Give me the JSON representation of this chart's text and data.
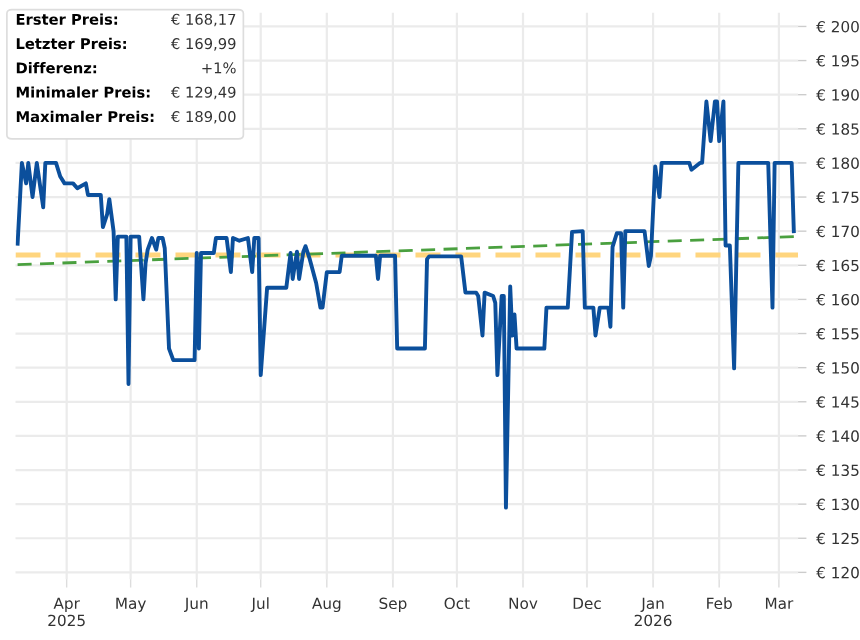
{
  "chart_data": {
    "type": "line",
    "annotations": [
      "Erster Preis:\t€ 168,17",
      "Letzter Preis:\t€ 169,99",
      "Differenz:\t+1%",
      "Minimaler Preis:\t€ 129,49",
      "Maximaler Preis:\t€ 189,00"
    ],
    "series": [
      {
        "color": "#0b4f9c",
        "x": [
          "2025-03-09",
          "2025-03-11",
          "2025-03-13",
          "2025-03-14",
          "2025-03-16",
          "2025-03-18",
          "2025-03-21",
          "2025-03-22",
          "2025-03-27",
          "2025-03-29",
          "2025-03-31",
          "2025-04-04",
          "2025-04-06",
          "2025-04-10",
          "2025-04-11",
          "2025-04-17",
          "2025-04-18",
          "2025-04-20",
          "2025-04-21",
          "2025-04-23",
          "2025-04-24",
          "2025-04-25",
          "2025-04-29",
          "2025-04-30",
          "2025-05-01",
          "2025-05-05",
          "2025-05-07",
          "2025-05-08",
          "2025-05-09",
          "2025-05-11",
          "2025-05-13",
          "2025-05-14",
          "2025-05-16",
          "2025-05-17",
          "2025-05-19",
          "2025-05-21",
          "2025-05-31",
          "2025-06-01",
          "2025-06-02",
          "2025-06-03",
          "2025-06-09",
          "2025-06-10",
          "2025-06-15",
          "2025-06-17",
          "2025-06-18",
          "2025-06-21",
          "2025-06-25",
          "2025-06-27",
          "2025-06-28",
          "2025-06-30",
          "2025-07-01",
          "2025-07-04",
          "2025-07-13",
          "2025-07-15",
          "2025-07-16",
          "2025-07-18",
          "2025-07-19",
          "2025-07-21",
          "2025-07-22",
          "2025-07-24",
          "2025-07-27",
          "2025-07-29",
          "2025-07-30",
          "2025-08-01",
          "2025-08-07",
          "2025-08-08",
          "2025-08-24",
          "2025-08-25",
          "2025-08-26",
          "2025-09-02",
          "2025-09-03",
          "2025-09-16",
          "2025-09-17",
          "2025-09-18",
          "2025-10-03",
          "2025-10-05",
          "2025-10-10",
          "2025-10-11",
          "2025-10-13",
          "2025-10-14",
          "2025-10-18",
          "2025-10-19",
          "2025-10-20",
          "2025-10-22",
          "2025-10-23",
          "2025-10-24",
          "2025-10-26",
          "2025-10-27",
          "2025-10-28",
          "2025-10-29",
          "2025-11-11",
          "2025-11-12",
          "2025-11-22",
          "2025-11-24",
          "2025-11-29",
          "2025-11-30",
          "2025-12-04",
          "2025-12-05",
          "2025-12-07",
          "2025-12-11",
          "2025-12-12",
          "2025-12-13",
          "2025-12-15",
          "2025-12-17",
          "2025-12-18",
          "2025-12-19",
          "2025-12-28",
          "2025-12-30",
          "2025-12-31",
          "2026-01-02",
          "2026-01-04",
          "2026-01-05",
          "2026-01-18",
          "2026-01-19",
          "2026-01-23",
          "2026-01-24",
          "2026-01-26",
          "2026-01-28",
          "2026-01-30",
          "2026-01-31",
          "2026-02-01",
          "2026-02-03",
          "2026-02-04",
          "2026-02-06",
          "2026-02-08",
          "2026-02-10",
          "2026-02-24",
          "2026-02-26",
          "2026-02-27",
          "2026-03-07",
          "2026-03-08"
        ],
        "values": [
          168.17,
          180,
          177,
          180,
          175,
          180,
          173.5,
          180,
          180,
          178,
          177,
          177,
          176.3,
          177,
          175.3,
          175.3,
          170.6,
          172.5,
          174.7,
          170,
          160,
          169.2,
          169.2,
          147.6,
          169.2,
          169.2,
          160,
          165.3,
          167.3,
          169,
          167.3,
          169,
          169,
          167.5,
          152.8,
          151.1,
          151.1,
          166.8,
          152.8,
          166.8,
          166.8,
          169,
          169,
          164,
          169,
          168.6,
          169,
          164,
          169,
          169,
          148.9,
          161.7,
          161.7,
          166.8,
          163,
          167,
          163,
          167,
          167.8,
          165.9,
          162.4,
          158.8,
          158.8,
          164,
          164,
          166.4,
          166.4,
          163,
          166.4,
          166.4,
          152.8,
          152.8,
          165.9,
          166.3,
          166.3,
          161,
          161,
          160.5,
          154.7,
          161,
          160.5,
          159.5,
          148.9,
          160.5,
          160.5,
          129.49,
          161.9,
          154.7,
          157.8,
          152.8,
          152.8,
          158.8,
          158.8,
          169.9,
          170,
          158.8,
          158.8,
          154.7,
          158.8,
          158.8,
          156,
          167.7,
          169.7,
          169.7,
          158.8,
          170,
          170,
          164.9,
          166.4,
          179.5,
          175,
          180,
          180,
          179,
          180,
          180,
          189,
          183.2,
          189,
          189,
          183.2,
          189,
          167.9,
          167.9,
          149.9,
          180,
          180,
          158.8,
          180,
          180,
          169.99
        ]
      },
      {
        "color": "#4aa03f",
        "line_style": "dashed",
        "x": [
          "2025-03-09",
          "2026-03-08"
        ],
        "values": [
          165.1,
          169.2
        ]
      }
    ],
    "ref_lines": [
      {
        "axis": "y",
        "value": 166.5,
        "color": "#ffd57e",
        "line_style": "dashed"
      }
    ],
    "xlim": [
      "2025-03-08",
      "2026-03-10"
    ],
    "xticks": [
      {
        "value": "2025-04-01",
        "label": "Apr\n2025"
      },
      {
        "value": "2025-05-01",
        "label": "May"
      },
      {
        "value": "2025-06-01",
        "label": "Jun"
      },
      {
        "value": "2025-07-01",
        "label": "Jul"
      },
      {
        "value": "2025-08-01",
        "label": "Aug"
      },
      {
        "value": "2025-09-01",
        "label": "Sep"
      },
      {
        "value": "2025-10-01",
        "label": "Oct"
      },
      {
        "value": "2025-11-01",
        "label": "Nov"
      },
      {
        "value": "2025-12-01",
        "label": "Dec"
      },
      {
        "value": "2026-01-01",
        "label": "Jan\n2026"
      },
      {
        "value": "2026-02-01",
        "label": "Feb"
      },
      {
        "value": "2026-03-01",
        "label": "Mar"
      }
    ],
    "ylim": [
      119,
      202
    ],
    "yticks": [
      {
        "value": 120,
        "label": "€ 120"
      },
      {
        "value": 125,
        "label": "€ 125"
      },
      {
        "value": 130,
        "label": "€ 130"
      },
      {
        "value": 135,
        "label": "€ 135"
      },
      {
        "value": 140,
        "label": "€ 140"
      },
      {
        "value": 145,
        "label": "€ 145"
      },
      {
        "value": 150,
        "label": "€ 150"
      },
      {
        "value": 155,
        "label": "€ 155"
      },
      {
        "value": 160,
        "label": "€ 160"
      },
      {
        "value": 165,
        "label": "€ 165"
      },
      {
        "value": 170,
        "label": "€ 170"
      },
      {
        "value": 175,
        "label": "€ 175"
      },
      {
        "value": 180,
        "label": "€ 180"
      },
      {
        "value": 185,
        "label": "€ 185"
      },
      {
        "value": 190,
        "label": "€ 190"
      },
      {
        "value": 195,
        "label": "€ 195"
      },
      {
        "value": 200,
        "label": "€ 200"
      }
    ],
    "grid": true,
    "legend": false,
    "marker": "none",
    "line_style": "solid"
  }
}
